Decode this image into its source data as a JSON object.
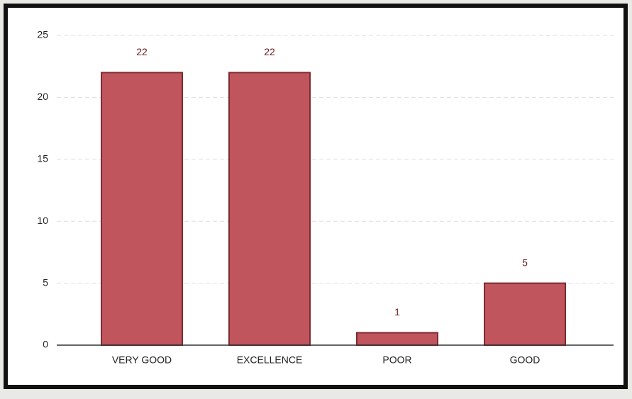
{
  "chart_data": {
    "type": "bar",
    "categories": [
      "VERY GOOD",
      "EXCELLENCE",
      "POOR",
      "GOOD"
    ],
    "values": [
      22,
      22,
      1,
      5
    ],
    "color": "#c0555e",
    "ylim": [
      0,
      25
    ],
    "yticks": [
      0,
      5,
      10,
      15,
      20,
      25
    ],
    "grid": true
  }
}
